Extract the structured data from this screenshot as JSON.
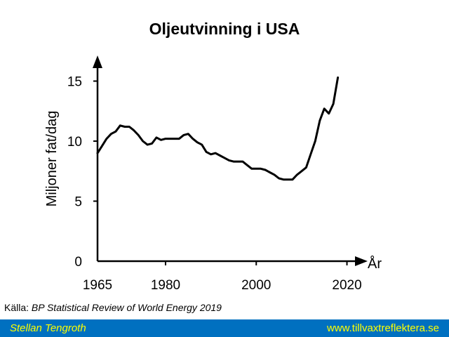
{
  "colors": {
    "footer_bg": "#0070c0",
    "footer_text": "#ffff00",
    "line": "#000000"
  },
  "source": {
    "prefix": "Källa: ",
    "text": "BP Statistical Review of World Energy 2019"
  },
  "footer": {
    "author": "Stellan Tengroth",
    "website": "www.tillvaxtreflektera.se"
  },
  "chart_data": {
    "type": "line",
    "title": "Oljeutvinning i USA",
    "xlabel": "År",
    "ylabel": "Miljoner fat/dag",
    "xlim": [
      1965,
      2022
    ],
    "ylim": [
      0,
      16
    ],
    "xticks": [
      1965,
      1980,
      2000,
      2020
    ],
    "yticks": [
      0,
      5,
      10,
      15
    ],
    "grid": false,
    "series": [
      {
        "x": [
          1965,
          1966,
          1967,
          1968,
          1969,
          1970,
          1971,
          1972,
          1973,
          1974,
          1975,
          1976,
          1977,
          1978,
          1979,
          1980,
          1981,
          1982,
          1983,
          1984,
          1985,
          1986,
          1987,
          1988,
          1989,
          1990,
          1991,
          1992,
          1993,
          1994,
          1995,
          1996,
          1997,
          1998,
          1999,
          2000,
          2001,
          2002,
          2003,
          2004,
          2005,
          2006,
          2007,
          2008,
          2009,
          2010,
          2011,
          2012,
          2013,
          2014,
          2015,
          2016,
          2017,
          2018
        ],
        "values": [
          9.0,
          9.6,
          10.2,
          10.6,
          10.8,
          11.3,
          11.2,
          11.2,
          10.9,
          10.5,
          10.0,
          9.7,
          9.8,
          10.3,
          10.1,
          10.2,
          10.2,
          10.2,
          10.2,
          10.5,
          10.6,
          10.2,
          9.9,
          9.7,
          9.1,
          8.9,
          9.0,
          8.8,
          8.6,
          8.4,
          8.3,
          8.3,
          8.3,
          8.0,
          7.7,
          7.7,
          7.7,
          7.6,
          7.4,
          7.2,
          6.9,
          6.8,
          6.8,
          6.8,
          7.2,
          7.5,
          7.8,
          8.9,
          10.0,
          11.7,
          12.7,
          12.3,
          13.1,
          15.3
        ]
      }
    ]
  }
}
